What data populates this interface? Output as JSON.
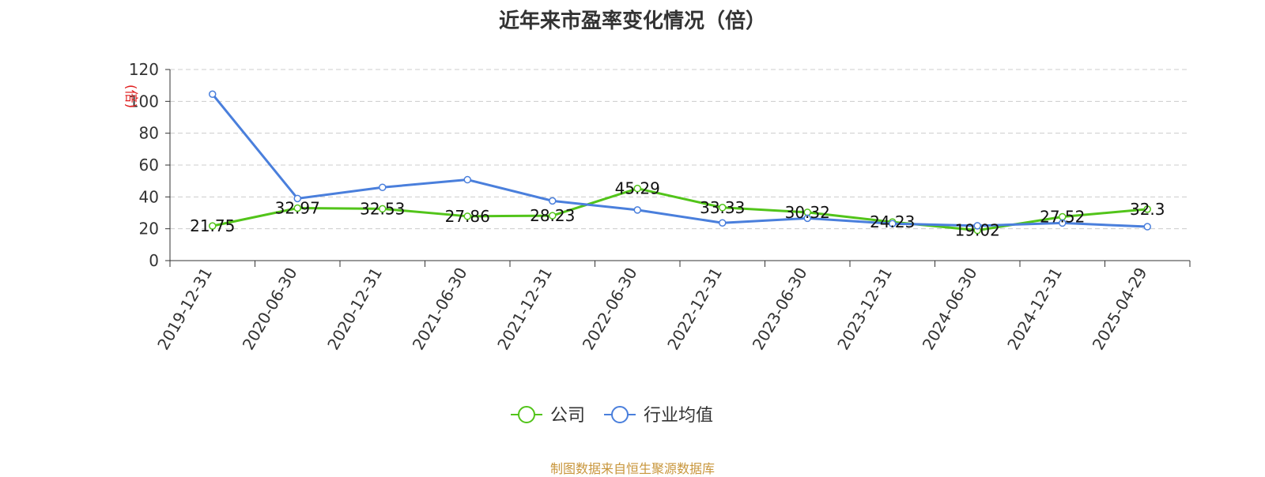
{
  "chart_data": {
    "type": "line",
    "title": "近年来市盈率变化情况（倍）",
    "ylabel": "(倍)",
    "xlabel": "",
    "ylim": [
      0,
      120
    ],
    "yticks": [
      0,
      20,
      40,
      60,
      80,
      100,
      120
    ],
    "grid": true,
    "legend_position": "bottom",
    "categories": [
      "2019-12-31",
      "2020-06-30",
      "2020-12-31",
      "2021-06-30",
      "2021-12-31",
      "2022-06-30",
      "2022-12-31",
      "2023-06-30",
      "2023-12-31",
      "2024-06-30",
      "2024-12-31",
      "2025-04-29"
    ],
    "series": [
      {
        "name": "公司",
        "color": "#52c41a",
        "values": [
          21.75,
          32.97,
          32.53,
          27.86,
          28.23,
          45.29,
          33.33,
          30.32,
          24.23,
          19.02,
          27.52,
          32.3
        ],
        "labels": [
          "21.75",
          "32.97",
          "32.53",
          "27.86",
          "28.23",
          "45.29",
          "33.33",
          "30.32",
          "24.23",
          "19.02",
          "27.52",
          "32.3"
        ]
      },
      {
        "name": "行业均值",
        "color": "#4a7fdc",
        "values": [
          104.5,
          39.0,
          46.0,
          50.8,
          37.5,
          31.8,
          23.7,
          26.6,
          23.2,
          21.9,
          23.6,
          21.3
        ]
      }
    ]
  },
  "footer": {
    "source": "制图数据来自恒生聚源数据库"
  }
}
